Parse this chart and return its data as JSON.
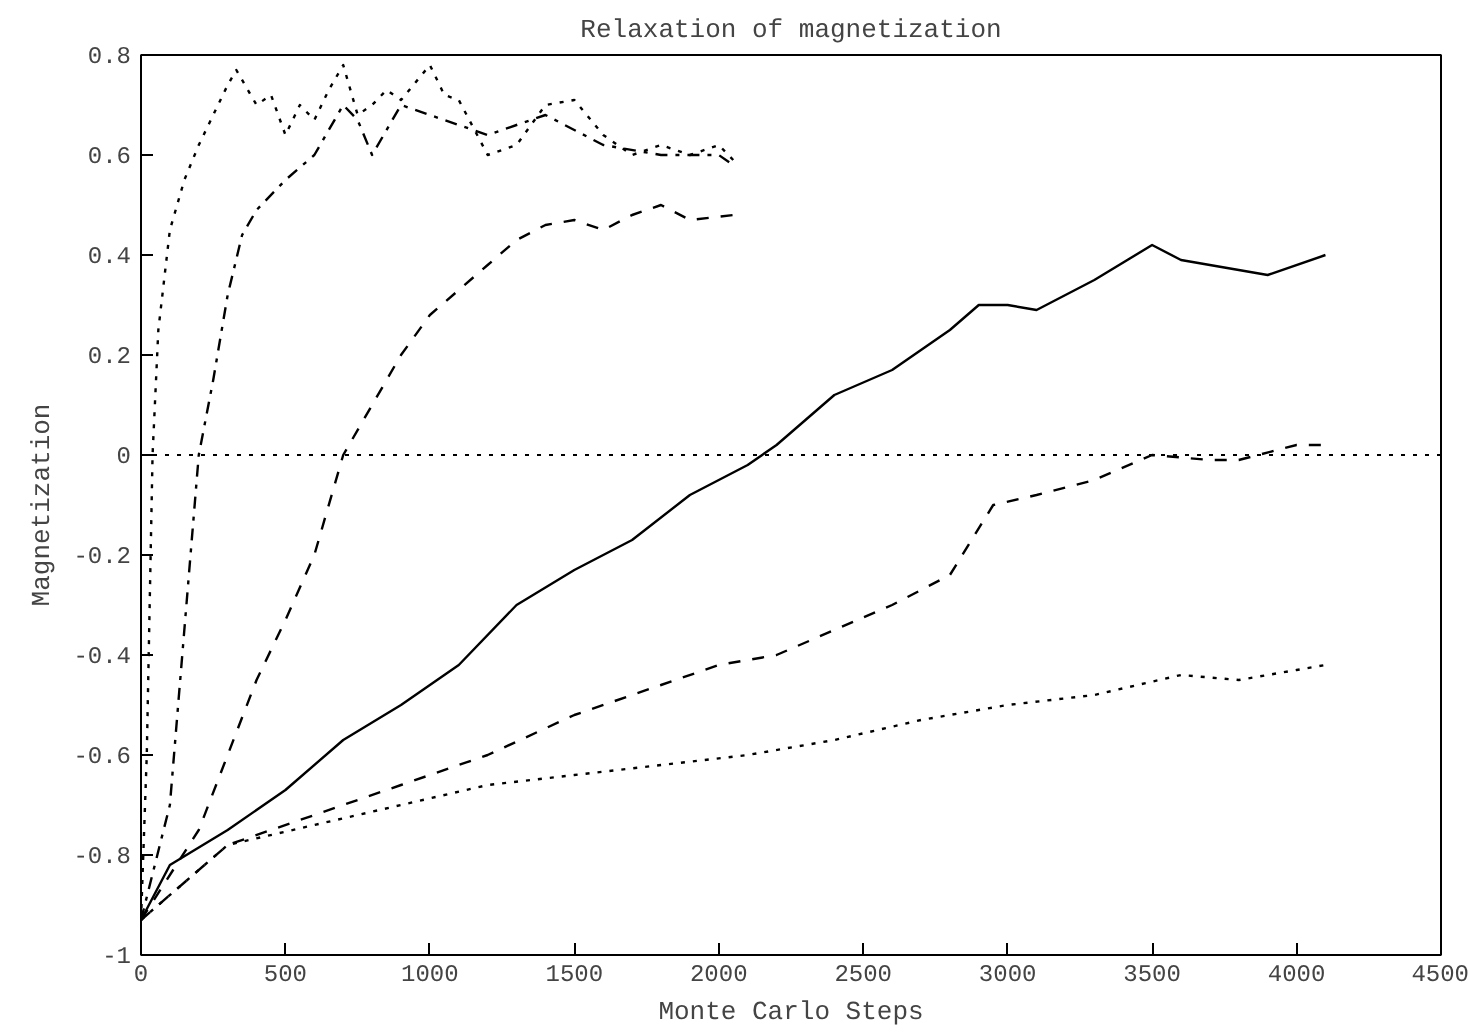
{
  "chart_data": {
    "type": "line",
    "title": "Relaxation of magnetization",
    "xlabel": "Monte Carlo Steps",
    "ylabel": "Magnetization",
    "xlim": [
      0,
      4500
    ],
    "xticks": [
      0,
      500,
      1000,
      1500,
      2000,
      2500,
      3000,
      3500,
      4000,
      4500
    ],
    "ylim": [
      -1,
      0.8
    ],
    "yticks": [
      -1,
      -0.8,
      -0.6,
      -0.4,
      -0.2,
      0,
      0.2,
      0.4,
      0.6,
      0.8
    ],
    "grid": false,
    "ref_lines": [
      {
        "axis": "y",
        "value": 0,
        "line_style": "dotted",
        "color": "#000000"
      }
    ],
    "series": [
      {
        "color": "#000000",
        "line_style": "dotted",
        "x": [
          0,
          20,
          40,
          60,
          100,
          150,
          200,
          250,
          300,
          330,
          400,
          450,
          500,
          550,
          600,
          650,
          700,
          750,
          800,
          850,
          900,
          1000,
          1050,
          1100,
          1200,
          1300,
          1400,
          1500,
          1600,
          1700,
          1800,
          1900,
          2000,
          2050
        ],
        "values": [
          -0.93,
          -0.6,
          0,
          0.25,
          0.45,
          0.55,
          0.62,
          0.68,
          0.74,
          0.77,
          0.7,
          0.72,
          0.64,
          0.7,
          0.67,
          0.73,
          0.78,
          0.68,
          0.7,
          0.73,
          0.71,
          0.78,
          0.72,
          0.71,
          0.6,
          0.62,
          0.7,
          0.71,
          0.64,
          0.6,
          0.62,
          0.6,
          0.62,
          0.59
        ]
      },
      {
        "color": "#000000",
        "line_style": "dashdot",
        "x": [
          0,
          100,
          200,
          250,
          300,
          350,
          400,
          500,
          600,
          700,
          750,
          800,
          900,
          1000,
          1200,
          1400,
          1600,
          1800,
          2000,
          2050
        ],
        "values": [
          -0.93,
          -0.7,
          0,
          0.15,
          0.32,
          0.44,
          0.49,
          0.55,
          0.6,
          0.7,
          0.67,
          0.6,
          0.7,
          0.68,
          0.64,
          0.68,
          0.62,
          0.6,
          0.6,
          0.58
        ]
      },
      {
        "color": "#000000",
        "line_style": "dashed",
        "x": [
          0,
          200,
          300,
          400,
          500,
          600,
          700,
          800,
          900,
          1000,
          1100,
          1200,
          1300,
          1400,
          1500,
          1600,
          1700,
          1800,
          1900,
          2050
        ],
        "values": [
          -0.93,
          -0.75,
          -0.6,
          -0.45,
          -0.33,
          -0.2,
          0,
          0.1,
          0.2,
          0.28,
          0.33,
          0.38,
          0.43,
          0.46,
          0.47,
          0.45,
          0.48,
          0.5,
          0.47,
          0.48
        ]
      },
      {
        "color": "#000000",
        "line_style": "solid",
        "x": [
          0,
          100,
          300,
          500,
          700,
          900,
          1100,
          1300,
          1500,
          1700,
          1900,
          2100,
          2200,
          2400,
          2600,
          2800,
          2900,
          3000,
          3100,
          3300,
          3500,
          3600,
          3800,
          3900,
          4100
        ],
        "values": [
          -0.93,
          -0.82,
          -0.75,
          -0.67,
          -0.57,
          -0.5,
          -0.42,
          -0.3,
          -0.23,
          -0.17,
          -0.08,
          -0.02,
          0.02,
          0.12,
          0.17,
          0.25,
          0.3,
          0.3,
          0.29,
          0.35,
          0.42,
          0.39,
          0.37,
          0.36,
          0.4
        ]
      },
      {
        "color": "#000000",
        "line_style": "dashed",
        "x": [
          0,
          300,
          600,
          900,
          1200,
          1500,
          1800,
          2000,
          2200,
          2400,
          2600,
          2800,
          2950,
          3100,
          3300,
          3500,
          3700,
          3800,
          4000,
          4100
        ],
        "values": [
          -0.93,
          -0.78,
          -0.72,
          -0.66,
          -0.6,
          -0.52,
          -0.46,
          -0.42,
          -0.4,
          -0.35,
          -0.3,
          -0.24,
          -0.1,
          -0.08,
          -0.05,
          0,
          -0.01,
          -0.01,
          0.02,
          0.02
        ]
      },
      {
        "color": "#000000",
        "line_style": "dotted",
        "x": [
          0,
          300,
          600,
          900,
          1200,
          1500,
          1800,
          2100,
          2400,
          2700,
          3000,
          3300,
          3600,
          3800,
          4000,
          4100
        ],
        "values": [
          -0.93,
          -0.78,
          -0.74,
          -0.7,
          -0.66,
          -0.64,
          -0.62,
          -0.6,
          -0.57,
          -0.53,
          -0.5,
          -0.48,
          -0.44,
          -0.45,
          -0.43,
          -0.42
        ]
      }
    ]
  }
}
